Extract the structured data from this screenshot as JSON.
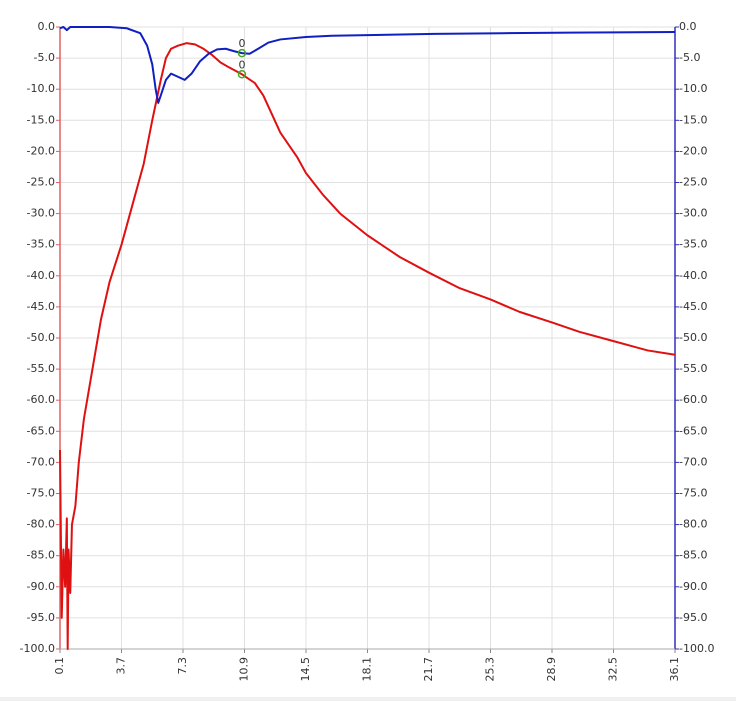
{
  "chart_data": {
    "type": "line",
    "xlim": [
      0.1,
      36.1
    ],
    "xticks": [
      0.1,
      3.7,
      7.3,
      10.9,
      14.5,
      18.1,
      21.7,
      25.3,
      28.9,
      32.5,
      36.1
    ],
    "ylim": [
      -100,
      0
    ],
    "yticks": [
      {
        "value": 0,
        "label": "0.0"
      },
      {
        "value": -5,
        "label": "-5.0"
      },
      {
        "value": -10,
        "label": "-10.0"
      },
      {
        "value": -15,
        "label": "-15.0"
      },
      {
        "value": -20,
        "label": "-20.0"
      },
      {
        "value": -25,
        "label": "-25.0"
      },
      {
        "value": -30,
        "label": "-30.0"
      },
      {
        "value": -35,
        "label": "-35.0"
      },
      {
        "value": -40,
        "label": "-40.0"
      },
      {
        "value": -45,
        "label": "-45.0"
      },
      {
        "value": -50,
        "label": "-50.0"
      },
      {
        "value": -55,
        "label": "-55.0"
      },
      {
        "value": -60,
        "label": "-60.0"
      },
      {
        "value": -65,
        "label": "-65.0"
      },
      {
        "value": -70,
        "label": "-70.0"
      },
      {
        "value": -75,
        "label": "-75.0"
      },
      {
        "value": -80,
        "label": "-80.0"
      },
      {
        "value": -85,
        "label": "-85.0"
      },
      {
        "value": -90,
        "label": "-90.0"
      },
      {
        "value": -95,
        "label": "-95.0"
      },
      {
        "value": -100,
        "label": "-100.0"
      }
    ],
    "y2lim": [
      -100,
      0
    ],
    "y2ticks": [
      {
        "value": 0,
        "label": "0.0"
      },
      {
        "value": -5,
        "label": "-5.0"
      },
      {
        "value": -10,
        "label": "-10.0"
      },
      {
        "value": -15,
        "label": "-15.0"
      },
      {
        "value": -20,
        "label": "-20.0"
      },
      {
        "value": -25,
        "label": "-25.0"
      },
      {
        "value": -30,
        "label": "-30.0"
      },
      {
        "value": -35,
        "label": "-35.0"
      },
      {
        "value": -40,
        "label": "-40.0"
      },
      {
        "value": -45,
        "label": "-45.0"
      },
      {
        "value": -50,
        "label": "-50.0"
      },
      {
        "value": -55,
        "label": "-55.0"
      },
      {
        "value": -60,
        "label": "-60.0"
      },
      {
        "value": -65,
        "label": "-65.0"
      },
      {
        "value": -70,
        "label": "-70.0"
      },
      {
        "value": -75,
        "label": "-75.0"
      },
      {
        "value": -80,
        "label": "-80.0"
      },
      {
        "value": -85,
        "label": "-85.0"
      },
      {
        "value": -90,
        "label": "-90.0"
      },
      {
        "value": -95,
        "label": "-95.0"
      },
      {
        "value": -100,
        "label": "-100.0"
      }
    ],
    "grid": true,
    "axis_color": "#e06060",
    "axis2_color": "#3030c0",
    "series": [
      {
        "color": "#e01010",
        "x": [
          0.1,
          0.2,
          0.3,
          0.4,
          0.5,
          0.55,
          0.6,
          0.7,
          0.8,
          1.0,
          1.2,
          1.5,
          2.0,
          2.5,
          3.0,
          3.7,
          4.5,
          5.0,
          5.5,
          6.0,
          6.3,
          6.6,
          7.0,
          7.5,
          8.0,
          8.5,
          9.0,
          9.5,
          10.0,
          10.75,
          11.5,
          12.0,
          12.5,
          13.0,
          14.0,
          14.5,
          15.5,
          16.5,
          18.1,
          20.0,
          21.7,
          23.5,
          25.3,
          27.0,
          28.9,
          30.5,
          32.5,
          34.5,
          36.1
        ],
        "values": [
          -68,
          -95,
          -84,
          -90,
          -79,
          -100,
          -84,
          -91,
          -80,
          -77,
          -70,
          -63,
          -55,
          -47,
          -41,
          -35,
          -27,
          -22,
          -15,
          -8.5,
          -5,
          -3.5,
          -3,
          -2.6,
          -2.8,
          -3.5,
          -4.5,
          -5.7,
          -6.5,
          -7.6,
          -9,
          -11,
          -14,
          -17,
          -21,
          -23.5,
          -27,
          -30,
          -33.5,
          -37,
          -39.5,
          -42,
          -43.8,
          -45.8,
          -47.5,
          -49,
          -50.5,
          -52,
          -52.7
        ]
      },
      {
        "color": "#1020c0",
        "axis": "y2",
        "x": [
          0.1,
          0.3,
          0.5,
          0.7,
          1.0,
          3.0,
          4.0,
          4.8,
          5.2,
          5.5,
          5.7,
          5.85,
          6.0,
          6.3,
          6.6,
          7.0,
          7.4,
          7.8,
          8.3,
          8.8,
          9.3,
          9.8,
          10.3,
          10.75,
          11.2,
          11.7,
          12.3,
          13.0,
          14.5,
          16.0,
          18.1,
          22.0,
          26.0,
          30.0,
          36.1
        ],
        "values": [
          -0.2,
          0,
          -0.5,
          0,
          0,
          0,
          -0.2,
          -1,
          -3,
          -6,
          -10,
          -12.2,
          -11,
          -8.5,
          -7.5,
          -8,
          -8.5,
          -7.5,
          -5.5,
          -4.3,
          -3.6,
          -3.5,
          -3.9,
          -4.2,
          -4.3,
          -3.5,
          -2.5,
          -2,
          -1.6,
          -1.4,
          -1.3,
          -1.1,
          -1,
          -0.9,
          -0.8
        ]
      }
    ],
    "markers": [
      {
        "x": 10.75,
        "y": -4.2,
        "label": "0",
        "color": "#44aa22"
      },
      {
        "x": 10.75,
        "y": -7.6,
        "label": "0",
        "color": "#44aa22"
      }
    ]
  }
}
